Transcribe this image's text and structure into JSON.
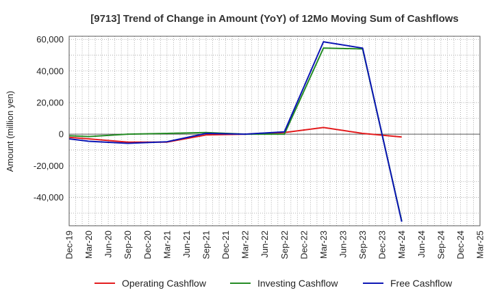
{
  "chart_data": {
    "type": "line",
    "title": "[9713]  Trend of Change in Amount (YoY) of 12Mo Moving Sum of Cashflows",
    "xlabel": "",
    "ylabel": "Amount (million yen)",
    "ylim": [
      -58000,
      62000
    ],
    "yticks": [
      60000,
      40000,
      20000,
      0,
      -20000,
      -40000
    ],
    "ytick_labels": [
      "60,000",
      "40,000",
      "20,000",
      "0",
      "-20,000",
      "-40,000"
    ],
    "categories": [
      "Dec-19",
      "Mar-20",
      "Jun-20",
      "Sep-20",
      "Dec-20",
      "Mar-21",
      "Jun-21",
      "Sep-21",
      "Dec-21",
      "Mar-22",
      "Jun-22",
      "Sep-22",
      "Dec-22",
      "Mar-23",
      "Jun-23",
      "Sep-23",
      "Dec-23",
      "Mar-24",
      "Jun-24",
      "Sep-24",
      "Dec-24",
      "Mar-25"
    ],
    "grid": true,
    "legend_position": "bottom",
    "series": [
      {
        "name": "Operating Cashflow",
        "color": "#e31a1c",
        "values": [
          -2000,
          -3000,
          null,
          -5000,
          null,
          -5000,
          null,
          -500,
          null,
          0,
          null,
          1000,
          null,
          4200,
          null,
          500,
          null,
          -1800,
          null,
          null,
          null,
          null
        ]
      },
      {
        "name": "Investing Cashflow",
        "color": "#238b23",
        "values": [
          -1000,
          -1500,
          null,
          0,
          null,
          500,
          null,
          1000,
          null,
          0,
          null,
          0,
          null,
          54500,
          null,
          54000,
          null,
          -55000,
          null,
          null,
          null,
          null
        ]
      },
      {
        "name": "Free Cashflow",
        "color": "#0a14b4",
        "values": [
          -3000,
          -4500,
          null,
          -5800,
          null,
          -4800,
          null,
          500,
          null,
          0,
          null,
          1500,
          null,
          58500,
          null,
          54500,
          null,
          -55500,
          null,
          null,
          null,
          null
        ]
      }
    ]
  }
}
